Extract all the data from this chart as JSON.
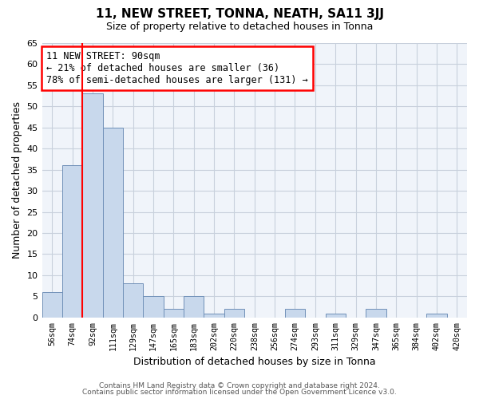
{
  "title": "11, NEW STREET, TONNA, NEATH, SA11 3JJ",
  "subtitle": "Size of property relative to detached houses in Tonna",
  "xlabel": "Distribution of detached houses by size in Tonna",
  "ylabel": "Number of detached properties",
  "bar_color": "#c8d8ec",
  "bar_edge_color": "#7090b8",
  "categories": [
    "56sqm",
    "74sqm",
    "92sqm",
    "111sqm",
    "129sqm",
    "147sqm",
    "165sqm",
    "183sqm",
    "202sqm",
    "220sqm",
    "238sqm",
    "256sqm",
    "274sqm",
    "293sqm",
    "311sqm",
    "329sqm",
    "347sqm",
    "365sqm",
    "384sqm",
    "402sqm",
    "420sqm"
  ],
  "values": [
    6,
    36,
    53,
    45,
    8,
    5,
    2,
    5,
    1,
    2,
    0,
    0,
    2,
    0,
    1,
    0,
    2,
    0,
    0,
    1,
    0
  ],
  "ylim": [
    0,
    65
  ],
  "yticks": [
    0,
    5,
    10,
    15,
    20,
    25,
    30,
    35,
    40,
    45,
    50,
    55,
    60,
    65
  ],
  "red_line_index": 2,
  "annotation_title": "11 NEW STREET: 90sqm",
  "annotation_line1": "← 21% of detached houses are smaller (36)",
  "annotation_line2": "78% of semi-detached houses are larger (131) →",
  "footer_line1": "Contains HM Land Registry data © Crown copyright and database right 2024.",
  "footer_line2": "Contains public sector information licensed under the Open Government Licence v3.0.",
  "background_color": "#ffffff",
  "plot_bg_color": "#f0f4fa",
  "grid_color": "#c8d0dc"
}
